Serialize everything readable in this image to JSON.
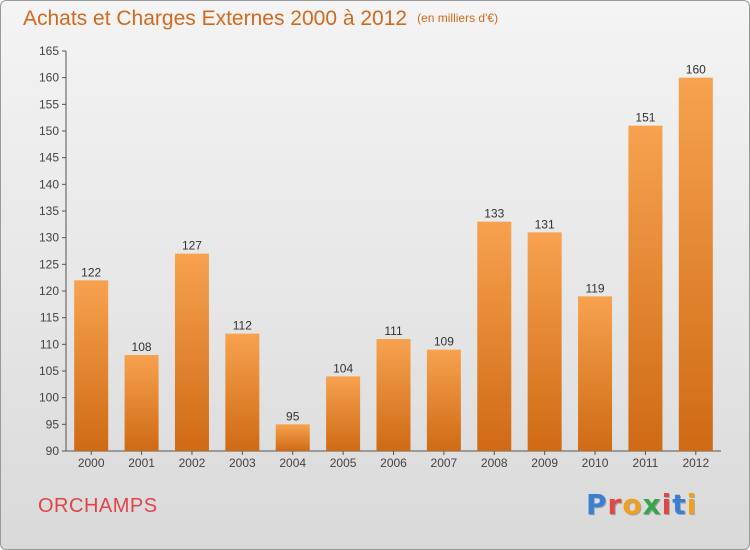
{
  "colors": {
    "title": "#d2691e",
    "bar_light": "#f7a24f",
    "bar_dark": "#cf6a15",
    "place": "#e0454a"
  },
  "chart_data": {
    "type": "bar",
    "title": "Achats et Charges Externes 2000 à 2012",
    "subtitle": "(en milliers d'€)",
    "xlabel": "",
    "ylabel": "",
    "categories": [
      "2000",
      "2001",
      "2002",
      "2003",
      "2004",
      "2005",
      "2006",
      "2007",
      "2008",
      "2009",
      "2010",
      "2011",
      "2012"
    ],
    "values": [
      122,
      108,
      127,
      112,
      95,
      104,
      111,
      109,
      133,
      131,
      119,
      151,
      160
    ],
    "ylim": [
      90,
      165
    ],
    "yticks": [
      90,
      95,
      100,
      105,
      110,
      115,
      120,
      125,
      130,
      135,
      140,
      145,
      150,
      155,
      160,
      165
    ],
    "grid": false,
    "data_labels": true
  },
  "footer": {
    "place": "ORCHAMPS",
    "logo": "Proxiti"
  },
  "logo_colors": [
    "#3a7fd1",
    "#e04848",
    "#f0a020",
    "#3aa548",
    "#e04848",
    "#3a7fd1",
    "#f0a020"
  ]
}
